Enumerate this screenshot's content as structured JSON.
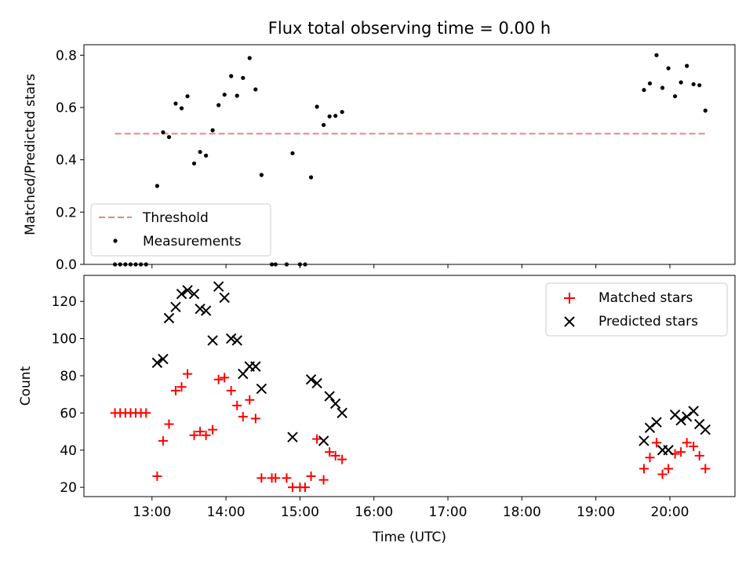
{
  "chart_data": [
    {
      "type": "scatter",
      "title": "Flux total observing time = 0.00 h",
      "ylabel": "Matched/Predicted stars",
      "xlabel": "",
      "xlim": [
        12.08,
        20.88
      ],
      "ylim": [
        0,
        0.84
      ],
      "yticks": [
        0.0,
        0.2,
        0.4,
        0.6,
        0.8
      ],
      "ytick_labels": [
        "0.0",
        "0.2",
        "0.4",
        "0.6",
        "0.8"
      ],
      "threshold": {
        "name": "Threshold",
        "value": 0.5,
        "x": [
          12.5,
          20.5
        ],
        "color": "#f08080"
      },
      "legend": {
        "placement": "lower-left"
      },
      "series": [
        {
          "name": "Measurements",
          "marker": "dot",
          "color": "#000000",
          "points": [
            [
              12.5,
              0.0
            ],
            [
              12.57,
              0.0
            ],
            [
              12.64,
              0.0
            ],
            [
              12.71,
              0.0
            ],
            [
              12.78,
              0.0
            ],
            [
              12.85,
              0.0
            ],
            [
              12.92,
              0.0
            ],
            [
              13.07,
              0.3
            ],
            [
              13.15,
              0.505
            ],
            [
              13.23,
              0.487
            ],
            [
              13.32,
              0.615
            ],
            [
              13.4,
              0.597
            ],
            [
              13.48,
              0.643
            ],
            [
              13.57,
              0.386
            ],
            [
              13.65,
              0.43
            ],
            [
              13.73,
              0.416
            ],
            [
              13.82,
              0.513
            ],
            [
              13.9,
              0.609
            ],
            [
              13.98,
              0.649
            ],
            [
              14.07,
              0.72
            ],
            [
              14.15,
              0.645
            ],
            [
              14.23,
              0.713
            ],
            [
              14.32,
              0.789
            ],
            [
              14.4,
              0.669
            ],
            [
              14.48,
              0.342
            ],
            [
              14.62,
              0.0
            ],
            [
              14.67,
              0.0
            ],
            [
              14.82,
              0.0
            ],
            [
              14.9,
              0.425
            ],
            [
              15.0,
              0.0
            ],
            [
              15.07,
              0.0
            ],
            [
              15.15,
              0.333
            ],
            [
              15.23,
              0.603
            ],
            [
              15.32,
              0.533
            ],
            [
              15.4,
              0.566
            ],
            [
              15.48,
              0.568
            ],
            [
              15.57,
              0.583
            ],
            [
              19.65,
              0.667
            ],
            [
              19.73,
              0.692
            ],
            [
              19.82,
              0.8
            ],
            [
              19.9,
              0.675
            ],
            [
              19.98,
              0.75
            ],
            [
              20.07,
              0.643
            ],
            [
              20.15,
              0.696
            ],
            [
              20.23,
              0.759
            ],
            [
              20.32,
              0.689
            ],
            [
              20.4,
              0.685
            ],
            [
              20.48,
              0.588
            ]
          ]
        }
      ]
    },
    {
      "type": "scatter",
      "title": "",
      "xlabel": "Time (UTC)",
      "ylabel": "Count",
      "xlim": [
        12.08,
        20.88
      ],
      "ylim": [
        15,
        134
      ],
      "xticks": [
        13,
        14,
        15,
        16,
        17,
        18,
        19,
        20
      ],
      "xtick_labels": [
        "13:00",
        "14:00",
        "15:00",
        "16:00",
        "17:00",
        "18:00",
        "19:00",
        "20:00"
      ],
      "yticks": [
        20,
        40,
        60,
        80,
        100,
        120
      ],
      "ytick_labels": [
        "20",
        "40",
        "60",
        "80",
        "100",
        "120"
      ],
      "legend": {
        "placement": "top-right"
      },
      "series": [
        {
          "name": "Matched stars",
          "marker": "plus",
          "color": "#ff0000",
          "points": [
            [
              12.5,
              60
            ],
            [
              12.57,
              60
            ],
            [
              12.64,
              60
            ],
            [
              12.71,
              60
            ],
            [
              12.78,
              60
            ],
            [
              12.85,
              60
            ],
            [
              12.92,
              60
            ],
            [
              13.07,
              26
            ],
            [
              13.15,
              45
            ],
            [
              13.23,
              54
            ],
            [
              13.32,
              72
            ],
            [
              13.4,
              74
            ],
            [
              13.48,
              81
            ],
            [
              13.57,
              48
            ],
            [
              13.65,
              50
            ],
            [
              13.73,
              48
            ],
            [
              13.82,
              51
            ],
            [
              13.9,
              78
            ],
            [
              13.98,
              79
            ],
            [
              14.07,
              72
            ],
            [
              14.15,
              64
            ],
            [
              14.23,
              58
            ],
            [
              14.32,
              67
            ],
            [
              14.4,
              57
            ],
            [
              14.48,
              25
            ],
            [
              14.62,
              25
            ],
            [
              14.67,
              25
            ],
            [
              14.82,
              25
            ],
            [
              14.9,
              20
            ],
            [
              15.0,
              20
            ],
            [
              15.07,
              20
            ],
            [
              15.15,
              26
            ],
            [
              15.23,
              46
            ],
            [
              15.32,
              24
            ],
            [
              15.4,
              39
            ],
            [
              15.48,
              37
            ],
            [
              15.57,
              35
            ],
            [
              19.65,
              30
            ],
            [
              19.73,
              36
            ],
            [
              19.82,
              44
            ],
            [
              19.9,
              27
            ],
            [
              19.98,
              30
            ],
            [
              20.07,
              38
            ],
            [
              20.15,
              39
            ],
            [
              20.23,
              44
            ],
            [
              20.32,
              42
            ],
            [
              20.4,
              37
            ],
            [
              20.48,
              30
            ]
          ]
        },
        {
          "name": "Predicted stars",
          "marker": "x",
          "color": "#000000",
          "points": [
            [
              13.07,
              87
            ],
            [
              13.15,
              89
            ],
            [
              13.23,
              111
            ],
            [
              13.32,
              117
            ],
            [
              13.4,
              124
            ],
            [
              13.48,
              126
            ],
            [
              13.57,
              124
            ],
            [
              13.65,
              116
            ],
            [
              13.73,
              115
            ],
            [
              13.82,
              99
            ],
            [
              13.9,
              128
            ],
            [
              13.98,
              122
            ],
            [
              14.07,
              100
            ],
            [
              14.15,
              99
            ],
            [
              14.23,
              81
            ],
            [
              14.32,
              85
            ],
            [
              14.4,
              85
            ],
            [
              14.48,
              73
            ],
            [
              14.9,
              47
            ],
            [
              15.15,
              78
            ],
            [
              15.23,
              76
            ],
            [
              15.32,
              45
            ],
            [
              15.4,
              69
            ],
            [
              15.48,
              65
            ],
            [
              15.57,
              60
            ],
            [
              19.65,
              45
            ],
            [
              19.73,
              52
            ],
            [
              19.82,
              55
            ],
            [
              19.9,
              40
            ],
            [
              19.98,
              40
            ],
            [
              20.07,
              59
            ],
            [
              20.15,
              56
            ],
            [
              20.23,
              58
            ],
            [
              20.32,
              61
            ],
            [
              20.4,
              54
            ],
            [
              20.48,
              51
            ]
          ]
        }
      ]
    }
  ]
}
